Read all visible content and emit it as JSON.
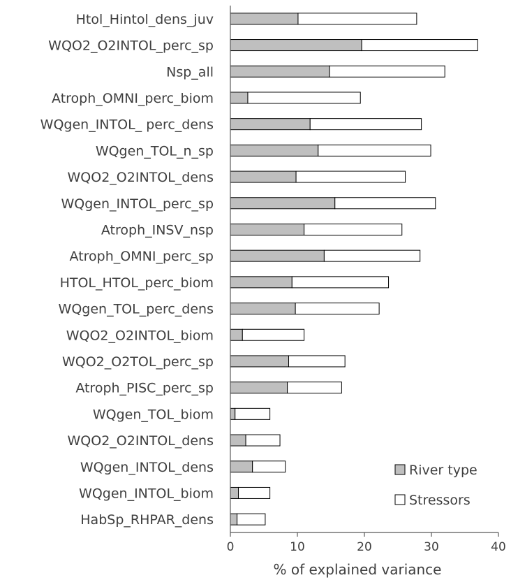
{
  "chart_data": {
    "type": "bar",
    "orientation": "horizontal",
    "stacked": true,
    "categories": [
      "Htol_Hintol_dens_juv",
      "WQO2_O2INTOL_perc_sp",
      "Nsp_all",
      "Atroph_OMNI_perc_biom",
      "WQgen_INTOL_ perc_dens",
      "WQgen_TOL_n_sp",
      "WQO2_O2INTOL_dens",
      "WQgen_INTOL_perc_sp",
      "Atroph_INSV_nsp",
      "Atroph_OMNI_perc_sp",
      "HTOL_HTOL_perc_biom",
      "WQgen_TOL_perc_dens",
      "WQO2_O2INTOL_biom",
      "WQO2_O2TOL_perc_sp",
      "Atroph_PISC_perc_sp",
      "WQgen_TOL_biom",
      "WQO2_O2INTOL_dens",
      "WQgen_INTOL_dens",
      "WQgen_INTOL_biom",
      "HabSp_RHPAR_dens"
    ],
    "series": [
      {
        "name": "River type",
        "color": "#bfbfbf",
        "values": [
          10.1,
          19.6,
          14.8,
          2.6,
          11.9,
          13.1,
          9.8,
          15.6,
          11.0,
          14.0,
          9.2,
          9.7,
          1.8,
          8.7,
          8.5,
          0.7,
          2.3,
          3.3,
          1.2,
          1.0
        ]
      },
      {
        "name": "Stressors",
        "color": "#ffffff",
        "values": [
          17.7,
          17.3,
          17.2,
          16.8,
          16.6,
          16.8,
          16.3,
          15.0,
          14.6,
          14.3,
          14.4,
          12.5,
          9.2,
          8.4,
          8.1,
          5.2,
          5.1,
          4.9,
          4.7,
          4.2
        ]
      }
    ],
    "xlabel": "% of explained variance",
    "ylabel": "",
    "xlim": [
      0,
      40
    ],
    "xticks": [
      0,
      10,
      20,
      30,
      40
    ],
    "grid": false,
    "legend_position": "bottom-right"
  }
}
